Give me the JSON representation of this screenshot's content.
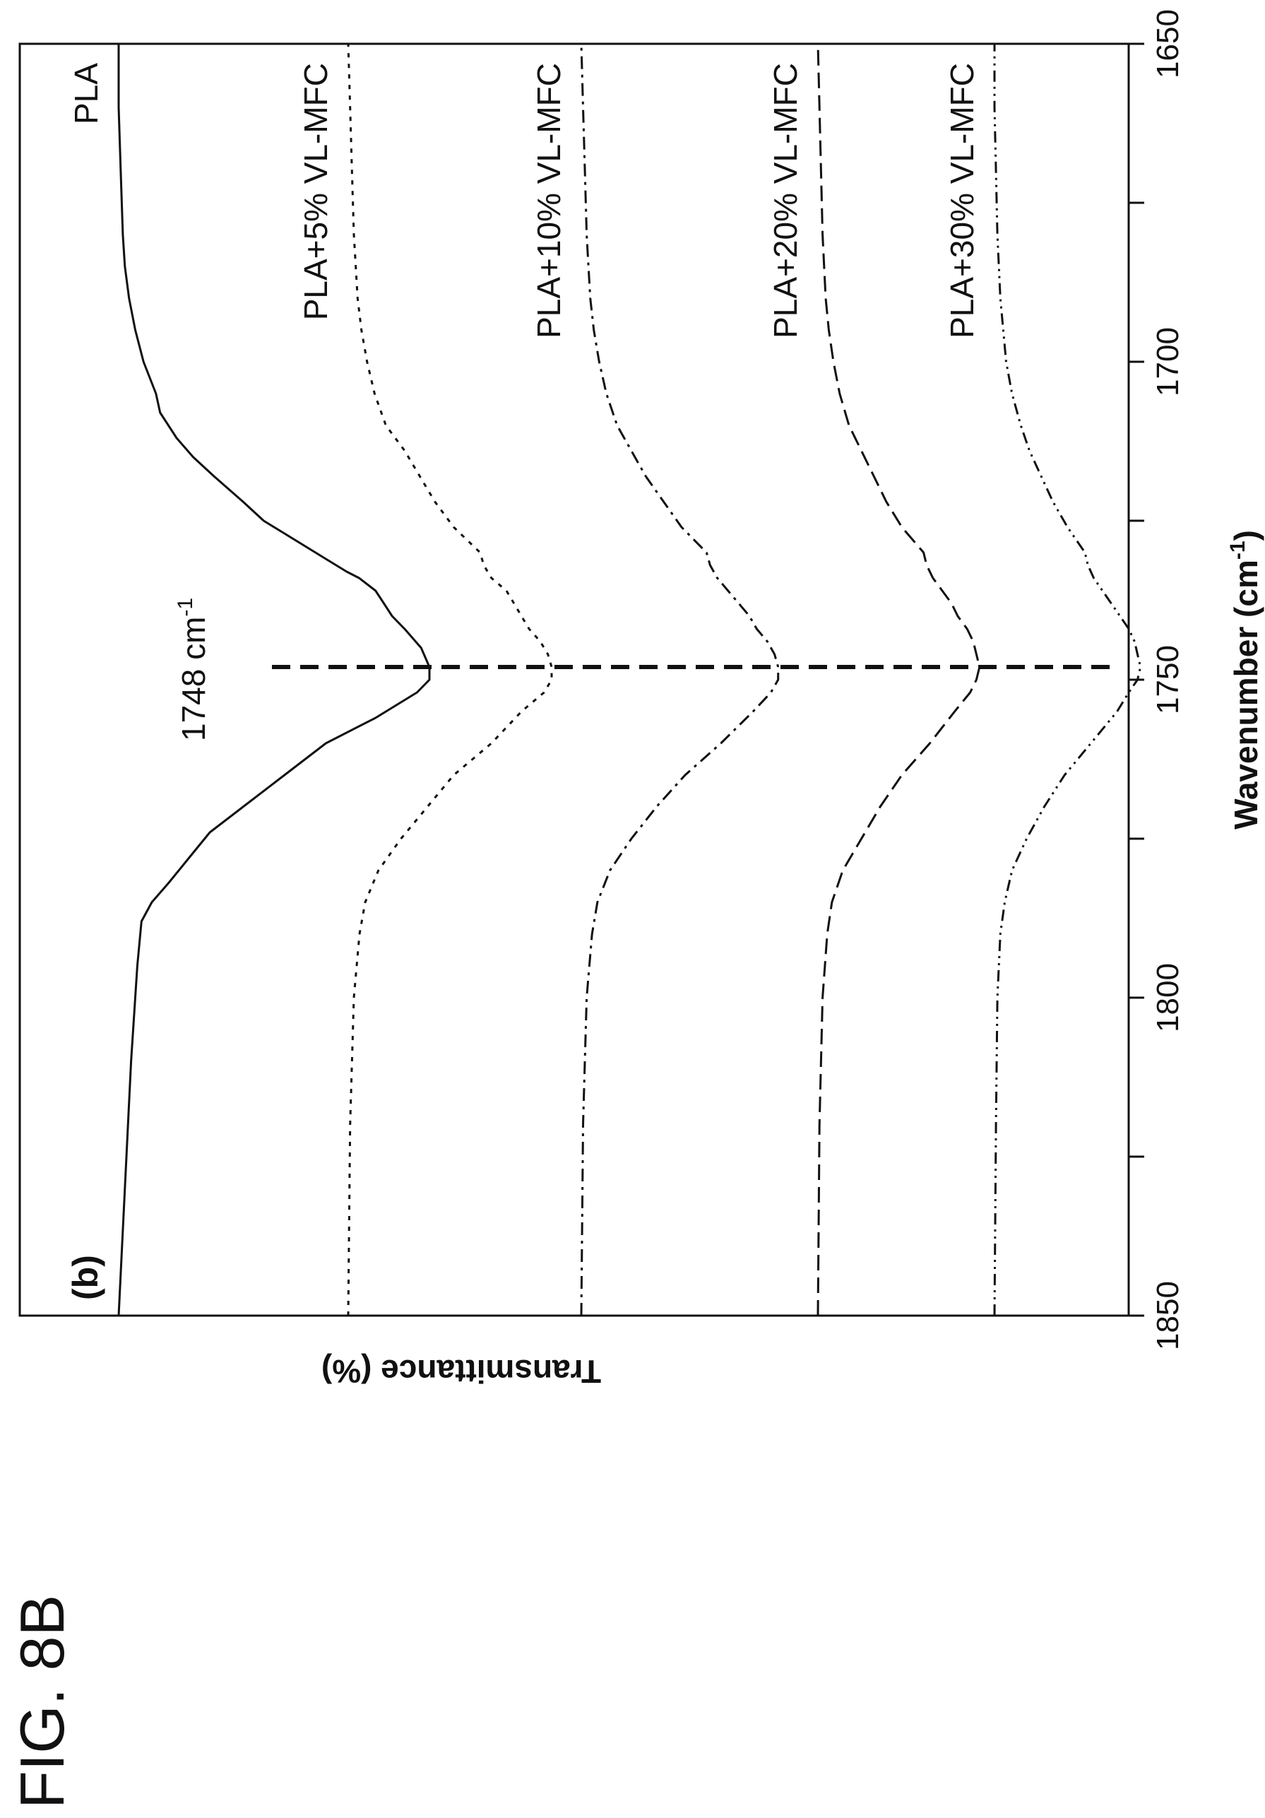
{
  "figure_label": "FIG. 8B",
  "chart_data": {
    "type": "line",
    "panel_label": "(b)",
    "xlabel": "Wavenumber (cm-1)",
    "xlabel_base": "Wavenumber (cm",
    "xlabel_sup": "-1",
    "xlabel_close": ")",
    "ylabel": "Transmittance (%)",
    "xlim": [
      1850,
      1650
    ],
    "x_ticks": [
      1850,
      1800,
      1750,
      1700,
      1650
    ],
    "x_tick_labels": [
      "1850",
      "1800",
      "1750",
      "1700",
      "1650"
    ],
    "grid": false,
    "annotation": {
      "x": 1748,
      "text": "1748 cm-1",
      "text_base": "1748 cm",
      "text_sup": "-1",
      "line_style": "bold-dashed"
    },
    "series": [
      {
        "name": "PLA",
        "style": "solid",
        "x": [
          1850,
          1830,
          1810,
          1795,
          1788,
          1785,
          1782,
          1778,
          1774,
          1770,
          1765,
          1760,
          1756,
          1752,
          1750,
          1748,
          1745,
          1742,
          1740,
          1738,
          1736,
          1734,
          1733,
          1731,
          1729,
          1727,
          1725,
          1722,
          1718,
          1715,
          1712,
          1708,
          1705,
          1700,
          1695,
          1690,
          1685,
          1680,
          1670,
          1660,
          1650
        ],
        "y": [
          1.0,
          0.985,
          0.97,
          0.955,
          0.945,
          0.92,
          0.88,
          0.83,
          0.78,
          0.7,
          0.6,
          0.5,
          0.38,
          0.28,
          0.25,
          0.25,
          0.27,
          0.31,
          0.34,
          0.36,
          0.38,
          0.42,
          0.45,
          0.5,
          0.55,
          0.6,
          0.65,
          0.7,
          0.77,
          0.82,
          0.86,
          0.9,
          0.91,
          0.94,
          0.96,
          0.975,
          0.985,
          0.99,
          0.995,
          1.0,
          1.0
        ],
        "label": "PLA"
      },
      {
        "name": "PLA+5% VL-MFC",
        "style": "dotted",
        "x": [
          1850,
          1820,
          1800,
          1790,
          1785,
          1780,
          1775,
          1770,
          1765,
          1760,
          1755,
          1752,
          1750,
          1748,
          1746,
          1744,
          1742,
          1740,
          1738,
          1736,
          1734,
          1732,
          1730,
          1726,
          1722,
          1718,
          1714,
          1710,
          1705,
          1700,
          1695,
          1690,
          1680,
          1670,
          1660,
          1650
        ],
        "y": [
          1.0,
          0.995,
          0.985,
          0.97,
          0.955,
          0.92,
          0.86,
          0.79,
          0.72,
          0.62,
          0.54,
          0.48,
          0.46,
          0.46,
          0.47,
          0.49,
          0.52,
          0.54,
          0.56,
          0.58,
          0.62,
          0.64,
          0.65,
          0.72,
          0.77,
          0.81,
          0.85,
          0.9,
          0.93,
          0.95,
          0.965,
          0.975,
          0.985,
          0.99,
          0.995,
          1.0
        ],
        "label": "PLA+5% VL-MFC"
      },
      {
        "name": "PLA+10% VL-MFC",
        "style": "dash-dot",
        "x": [
          1850,
          1820,
          1800,
          1790,
          1785,
          1780,
          1775,
          1770,
          1765,
          1760,
          1755,
          1752,
          1750,
          1748,
          1746,
          1744,
          1742,
          1740,
          1738,
          1736,
          1734,
          1732,
          1730,
          1726,
          1722,
          1718,
          1714,
          1710,
          1705,
          1700,
          1695,
          1690,
          1680,
          1670,
          1660,
          1650
        ],
        "y": [
          1.0,
          0.995,
          0.985,
          0.97,
          0.955,
          0.92,
          0.86,
          0.79,
          0.71,
          0.61,
          0.52,
          0.47,
          0.45,
          0.45,
          0.46,
          0.48,
          0.51,
          0.53,
          0.56,
          0.59,
          0.62,
          0.64,
          0.65,
          0.72,
          0.77,
          0.82,
          0.86,
          0.9,
          0.93,
          0.95,
          0.965,
          0.975,
          0.985,
          0.99,
          0.995,
          1.0
        ],
        "label": "PLA+10% VL-MFC"
      },
      {
        "name": "PLA+20% VL-MFC",
        "style": "dashed",
        "x": [
          1850,
          1820,
          1800,
          1790,
          1785,
          1780,
          1775,
          1770,
          1765,
          1760,
          1755,
          1752,
          1750,
          1748,
          1746,
          1744,
          1742,
          1740,
          1738,
          1736,
          1734,
          1732,
          1730,
          1726,
          1722,
          1718,
          1714,
          1710,
          1705,
          1700,
          1695,
          1690,
          1680,
          1670,
          1660,
          1650
        ],
        "y": [
          1.0,
          0.995,
          0.985,
          0.97,
          0.955,
          0.92,
          0.86,
          0.8,
          0.73,
          0.64,
          0.56,
          0.51,
          0.49,
          0.48,
          0.49,
          0.5,
          0.52,
          0.55,
          0.57,
          0.6,
          0.63,
          0.65,
          0.66,
          0.73,
          0.78,
          0.82,
          0.86,
          0.9,
          0.93,
          0.95,
          0.965,
          0.975,
          0.985,
          0.99,
          0.995,
          1.0
        ],
        "label": "PLA+20% VL-MFC"
      },
      {
        "name": "PLA+30% VL-MFC",
        "style": "dash-dot-dot",
        "x": [
          1850,
          1820,
          1800,
          1790,
          1785,
          1780,
          1775,
          1770,
          1765,
          1760,
          1755,
          1752,
          1750,
          1748,
          1746,
          1744,
          1742,
          1740,
          1738,
          1736,
          1734,
          1732,
          1730,
          1726,
          1722,
          1718,
          1714,
          1710,
          1705,
          1700,
          1695,
          1690,
          1680,
          1670,
          1660,
          1650
        ],
        "y": [
          1.0,
          0.995,
          0.99,
          0.98,
          0.965,
          0.94,
          0.89,
          0.83,
          0.76,
          0.67,
          0.58,
          0.54,
          0.51,
          0.5,
          0.51,
          0.52,
          0.54,
          0.57,
          0.6,
          0.63,
          0.66,
          0.68,
          0.69,
          0.75,
          0.8,
          0.84,
          0.88,
          0.91,
          0.94,
          0.96,
          0.97,
          0.98,
          0.99,
          0.995,
          1.0,
          1.0
        ],
        "label": "PLA+30% VL-MFC"
      }
    ]
  }
}
